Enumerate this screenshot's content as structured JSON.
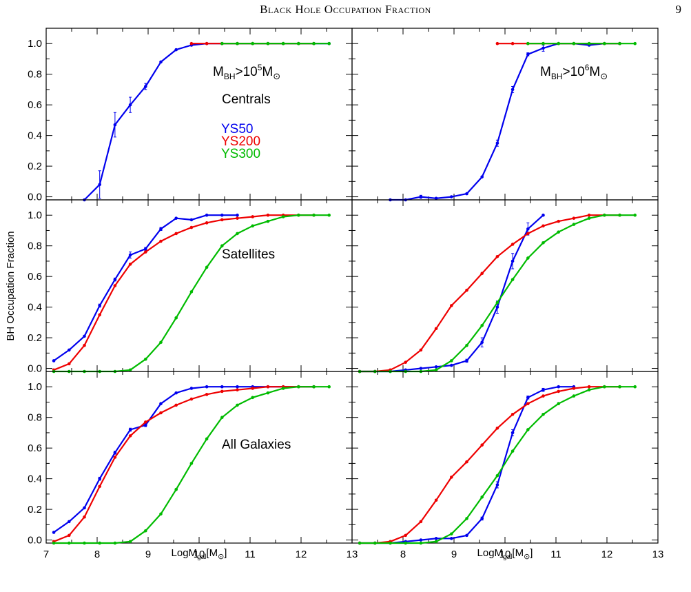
{
  "header": {
    "running_head": "Black Hole Occupation Fraction",
    "page_number": "9"
  },
  "footer": {
    "text": ""
  },
  "colors": {
    "YS50": "#0000ee",
    "YS200": "#ee0000",
    "YS300": "#00bb00"
  },
  "chart_data": {
    "type": "line",
    "layout": "3x2 grid",
    "ylabel": "BH Occupation Fraction",
    "xlabel": "LogMgal[M⊙]",
    "xlim": [
      7,
      13
    ],
    "ylim": [
      -0.02,
      1.1
    ],
    "xticks": [
      7,
      8,
      9,
      10,
      11,
      12,
      13
    ],
    "yticks": [
      0.0,
      0.2,
      0.4,
      0.6,
      0.8,
      1.0
    ],
    "tick_labels_y": [
      "0.0",
      "0.2",
      "0.4",
      "0.6",
      "0.8",
      "1.0"
    ],
    "tick_labels_x": [
      "7",
      "8",
      "9",
      "10",
      "11",
      "12",
      "13"
    ],
    "columns": [
      "MBH>10^5M⊙",
      "MBH>10^6M⊙"
    ],
    "rows": [
      "Centrals",
      "Satellites",
      "All Galaxies"
    ],
    "legend": [
      "YS50",
      "YS200",
      "YS300"
    ],
    "legend_location": "upper left of Centrals panel",
    "panels": [
      {
        "row": "Centrals",
        "column": "MBH>10^5M⊙",
        "annotations": [
          "MBH>10^5M⊙",
          "Centrals"
        ],
        "series": [
          {
            "name": "YS50",
            "x": [
              7.75,
              8.05,
              8.35,
              8.65,
              8.95,
              9.25,
              9.55,
              9.85,
              10.15,
              10.45,
              10.75,
              11.05,
              11.35,
              11.65,
              11.95,
              12.25,
              12.55
            ],
            "y": [
              -0.02,
              0.08,
              0.47,
              0.6,
              0.72,
              0.88,
              0.96,
              0.99,
              1.0,
              1.0,
              1.0,
              1.0,
              1.0,
              1.0,
              1.0,
              1.0,
              1.0
            ],
            "yerr": [
              0,
              0.09,
              0.08,
              0.05,
              0.02,
              0,
              0,
              0,
              0,
              0,
              0,
              0,
              0,
              0,
              0,
              0,
              0
            ]
          },
          {
            "name": "YS200",
            "x": [
              9.85,
              10.15,
              10.45,
              10.75,
              11.05,
              11.35,
              11.65,
              11.95,
              12.25
            ],
            "y": [
              1.0,
              1.0,
              1.0,
              1.0,
              1.0,
              1.0,
              1.0,
              1.0,
              1.0
            ]
          },
          {
            "name": "YS300",
            "x": [
              10.45,
              10.75,
              11.05,
              11.35,
              11.65,
              11.95,
              12.25,
              12.55
            ],
            "y": [
              1.0,
              1.0,
              1.0,
              1.0,
              1.0,
              1.0,
              1.0,
              1.0
            ]
          }
        ]
      },
      {
        "row": "Centrals",
        "column": "MBH>10^6M⊙",
        "annotations": [
          "MBH>10^6M⊙"
        ],
        "series": [
          {
            "name": "YS50",
            "x": [
              7.75,
              8.05,
              8.35,
              8.65,
              8.95,
              9.25,
              9.55,
              9.85,
              10.15,
              10.45,
              10.75,
              11.05,
              11.35,
              11.65,
              11.95,
              12.25
            ],
            "y": [
              -0.02,
              -0.02,
              0.0,
              -0.01,
              0.0,
              0.02,
              0.13,
              0.35,
              0.7,
              0.93,
              0.97,
              1.0,
              1.0,
              0.99,
              1.0,
              1.0
            ],
            "yerr": [
              0,
              0,
              0.01,
              0,
              0,
              0,
              0,
              0.02,
              0.02,
              0.01,
              0.02,
              0,
              0,
              0,
              0,
              0
            ]
          },
          {
            "name": "YS200",
            "x": [
              9.85,
              10.15,
              10.45,
              10.75,
              11.05,
              11.35,
              11.65,
              11.95,
              12.25
            ],
            "y": [
              1.0,
              1.0,
              1.0,
              1.0,
              1.0,
              1.0,
              1.0,
              1.0,
              1.0
            ]
          },
          {
            "name": "YS300",
            "x": [
              10.45,
              10.75,
              11.05,
              11.35,
              11.65,
              11.95,
              12.25,
              12.55
            ],
            "y": [
              1.0,
              1.0,
              1.0,
              1.0,
              1.0,
              1.0,
              1.0,
              1.0
            ]
          }
        ]
      },
      {
        "row": "Satellites",
        "column": "MBH>10^5M⊙",
        "annotations": [
          "Satellites"
        ],
        "series": [
          {
            "name": "YS50",
            "x": [
              7.15,
              7.45,
              7.75,
              8.05,
              8.35,
              8.65,
              8.95,
              9.25,
              9.55,
              9.85,
              10.15,
              10.45,
              10.75
            ],
            "y": [
              0.05,
              0.12,
              0.21,
              0.41,
              0.58,
              0.74,
              0.78,
              0.91,
              0.98,
              0.97,
              1.0,
              1.0,
              1.0
            ],
            "yerr": [
              0,
              0,
              0,
              0.01,
              0.01,
              0.02,
              0.01,
              0.01,
              0,
              0,
              0,
              0,
              0
            ]
          },
          {
            "name": "YS200",
            "x": [
              7.15,
              7.45,
              7.75,
              8.05,
              8.35,
              8.65,
              8.95,
              9.25,
              9.55,
              9.85,
              10.15,
              10.45,
              10.75,
              11.05,
              11.35,
              11.65,
              11.95,
              12.25
            ],
            "y": [
              -0.01,
              0.03,
              0.15,
              0.35,
              0.54,
              0.68,
              0.76,
              0.83,
              0.88,
              0.92,
              0.95,
              0.97,
              0.98,
              0.99,
              1.0,
              1.0,
              1.0,
              1.0
            ]
          },
          {
            "name": "YS300",
            "x": [
              7.15,
              7.45,
              7.75,
              8.05,
              8.35,
              8.65,
              8.95,
              9.25,
              9.55,
              9.85,
              10.15,
              10.45,
              10.75,
              11.05,
              11.35,
              11.65,
              11.95,
              12.25,
              12.55
            ],
            "y": [
              -0.02,
              -0.02,
              -0.02,
              -0.02,
              -0.02,
              -0.01,
              0.06,
              0.17,
              0.33,
              0.5,
              0.66,
              0.8,
              0.88,
              0.93,
              0.96,
              0.99,
              1.0,
              1.0,
              1.0
            ]
          }
        ]
      },
      {
        "row": "Satellites",
        "column": "MBH>10^6M⊙",
        "annotations": [],
        "series": [
          {
            "name": "YS50",
            "x": [
              7.15,
              7.45,
              7.75,
              8.05,
              8.35,
              8.65,
              8.95,
              9.25,
              9.55,
              9.85,
              10.15,
              10.45,
              10.75
            ],
            "y": [
              -0.02,
              -0.02,
              -0.02,
              -0.01,
              0.0,
              0.01,
              0.02,
              0.05,
              0.17,
              0.4,
              0.7,
              0.91,
              1.0
            ],
            "yerr": [
              0,
              0,
              0,
              0,
              0,
              0,
              0,
              0.01,
              0.03,
              0.04,
              0.05,
              0.04,
              0
            ]
          },
          {
            "name": "YS200",
            "x": [
              7.15,
              7.45,
              7.75,
              8.05,
              8.35,
              8.65,
              8.95,
              9.25,
              9.55,
              9.85,
              10.15,
              10.45,
              10.75,
              11.05,
              11.35,
              11.65,
              11.95,
              12.25
            ],
            "y": [
              -0.02,
              -0.02,
              -0.01,
              0.04,
              0.12,
              0.26,
              0.41,
              0.51,
              0.62,
              0.73,
              0.81,
              0.88,
              0.93,
              0.96,
              0.98,
              1.0,
              1.0,
              1.0
            ]
          },
          {
            "name": "YS300",
            "x": [
              7.15,
              7.45,
              7.75,
              8.05,
              8.35,
              8.65,
              8.95,
              9.25,
              9.55,
              9.85,
              10.15,
              10.45,
              10.75,
              11.05,
              11.35,
              11.65,
              11.95,
              12.25,
              12.55
            ],
            "y": [
              -0.02,
              -0.02,
              -0.02,
              -0.02,
              -0.02,
              -0.01,
              0.05,
              0.15,
              0.28,
              0.43,
              0.58,
              0.72,
              0.82,
              0.89,
              0.94,
              0.98,
              1.0,
              1.0,
              1.0
            ]
          }
        ]
      },
      {
        "row": "All Galaxies",
        "column": "MBH>10^5M⊙",
        "annotations": [
          "All Galaxies"
        ],
        "series": [
          {
            "name": "YS50",
            "x": [
              7.15,
              7.45,
              7.75,
              8.05,
              8.35,
              8.65,
              8.95,
              9.25,
              9.55,
              9.85,
              10.15,
              10.45,
              10.75,
              11.05,
              11.35,
              11.65,
              11.95,
              12.25
            ],
            "y": [
              0.05,
              0.12,
              0.21,
              0.4,
              0.57,
              0.72,
              0.75,
              0.89,
              0.96,
              0.99,
              1.0,
              1.0,
              1.0,
              1.0,
              1.0,
              1.0,
              1.0,
              1.0
            ],
            "yerr": [
              0,
              0,
              0,
              0.01,
              0.01,
              0.01,
              0.01,
              0,
              0,
              0,
              0,
              0,
              0,
              0,
              0,
              0,
              0,
              0
            ]
          },
          {
            "name": "YS200",
            "x": [
              7.15,
              7.45,
              7.75,
              8.05,
              8.35,
              8.65,
              8.95,
              9.25,
              9.55,
              9.85,
              10.15,
              10.45,
              10.75,
              11.05,
              11.35,
              11.65,
              11.95,
              12.25
            ],
            "y": [
              -0.01,
              0.03,
              0.15,
              0.35,
              0.54,
              0.68,
              0.77,
              0.83,
              0.88,
              0.92,
              0.95,
              0.97,
              0.98,
              0.99,
              1.0,
              1.0,
              1.0,
              1.0
            ]
          },
          {
            "name": "YS300",
            "x": [
              7.15,
              7.45,
              7.75,
              8.05,
              8.35,
              8.65,
              8.95,
              9.25,
              9.55,
              9.85,
              10.15,
              10.45,
              10.75,
              11.05,
              11.35,
              11.65,
              11.95,
              12.25,
              12.55
            ],
            "y": [
              -0.02,
              -0.02,
              -0.02,
              -0.02,
              -0.02,
              -0.01,
              0.06,
              0.17,
              0.33,
              0.5,
              0.66,
              0.8,
              0.88,
              0.93,
              0.96,
              0.99,
              1.0,
              1.0,
              1.0
            ]
          }
        ]
      },
      {
        "row": "All Galaxies",
        "column": "MBH>10^6M⊙",
        "annotations": [],
        "series": [
          {
            "name": "YS50",
            "x": [
              7.15,
              7.45,
              7.75,
              8.05,
              8.35,
              8.65,
              8.95,
              9.25,
              9.55,
              9.85,
              10.15,
              10.45,
              10.75,
              11.05,
              11.35
            ],
            "y": [
              -0.02,
              -0.02,
              -0.02,
              -0.01,
              0.0,
              0.01,
              0.01,
              0.03,
              0.14,
              0.36,
              0.7,
              0.93,
              0.98,
              1.0,
              1.0
            ],
            "yerr": [
              0,
              0,
              0,
              0,
              0,
              0,
              0,
              0,
              0.01,
              0.02,
              0.02,
              0.01,
              0.01,
              0,
              0
            ]
          },
          {
            "name": "YS200",
            "x": [
              7.15,
              7.45,
              7.75,
              8.05,
              8.35,
              8.65,
              8.95,
              9.25,
              9.55,
              9.85,
              10.15,
              10.45,
              10.75,
              11.05,
              11.35,
              11.65,
              11.95,
              12.25
            ],
            "y": [
              -0.02,
              -0.02,
              -0.01,
              0.03,
              0.12,
              0.26,
              0.41,
              0.51,
              0.62,
              0.73,
              0.82,
              0.89,
              0.94,
              0.97,
              0.99,
              1.0,
              1.0,
              1.0
            ]
          },
          {
            "name": "YS300",
            "x": [
              7.15,
              7.45,
              7.75,
              8.05,
              8.35,
              8.65,
              8.95,
              9.25,
              9.55,
              9.85,
              10.15,
              10.45,
              10.75,
              11.05,
              11.35,
              11.65,
              11.95,
              12.25,
              12.55
            ],
            "y": [
              -0.02,
              -0.02,
              -0.02,
              -0.02,
              -0.02,
              -0.01,
              0.04,
              0.14,
              0.28,
              0.42,
              0.58,
              0.72,
              0.82,
              0.89,
              0.94,
              0.98,
              1.0,
              1.0,
              1.0
            ]
          }
        ]
      }
    ]
  }
}
